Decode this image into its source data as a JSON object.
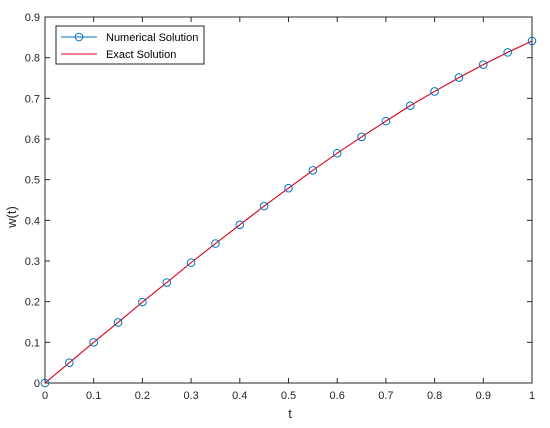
{
  "chart_data": {
    "type": "line",
    "xlabel": "t",
    "ylabel": "w(t)",
    "xlim": [
      0,
      1
    ],
    "ylim": [
      0,
      0.9
    ],
    "x_ticks": [
      "0",
      "0.1",
      "0.2",
      "0.3",
      "0.4",
      "0.5",
      "0.6",
      "0.7",
      "0.8",
      "0.9",
      "1"
    ],
    "y_ticks": [
      "0",
      "0.1",
      "0.2",
      "0.3",
      "0.4",
      "0.5",
      "0.6",
      "0.7",
      "0.8",
      "0.9"
    ],
    "grid": false,
    "legend_position": "top-left",
    "series": [
      {
        "name": "Numerical Solution",
        "style": "markers",
        "color": "#0072BD",
        "x": [
          0,
          0.05,
          0.1,
          0.15,
          0.2,
          0.25,
          0.3,
          0.35,
          0.4,
          0.45,
          0.5,
          0.55,
          0.6,
          0.65,
          0.7,
          0.75,
          0.8,
          0.85,
          0.9,
          0.95,
          1
        ],
        "y": [
          0,
          0.05,
          0.1,
          0.149,
          0.199,
          0.247,
          0.296,
          0.343,
          0.389,
          0.435,
          0.479,
          0.523,
          0.565,
          0.605,
          0.644,
          0.682,
          0.717,
          0.751,
          0.783,
          0.813,
          0.841
        ]
      },
      {
        "name": "Exact Solution",
        "style": "line",
        "color": "#D9001B",
        "x": [
          0,
          0.05,
          0.1,
          0.15,
          0.2,
          0.25,
          0.3,
          0.35,
          0.4,
          0.45,
          0.5,
          0.55,
          0.6,
          0.65,
          0.7,
          0.75,
          0.8,
          0.85,
          0.9,
          0.95,
          1
        ],
        "y": [
          0,
          0.05,
          0.1,
          0.149,
          0.199,
          0.247,
          0.296,
          0.343,
          0.389,
          0.435,
          0.479,
          0.523,
          0.565,
          0.605,
          0.644,
          0.682,
          0.717,
          0.751,
          0.783,
          0.813,
          0.841
        ]
      }
    ]
  }
}
